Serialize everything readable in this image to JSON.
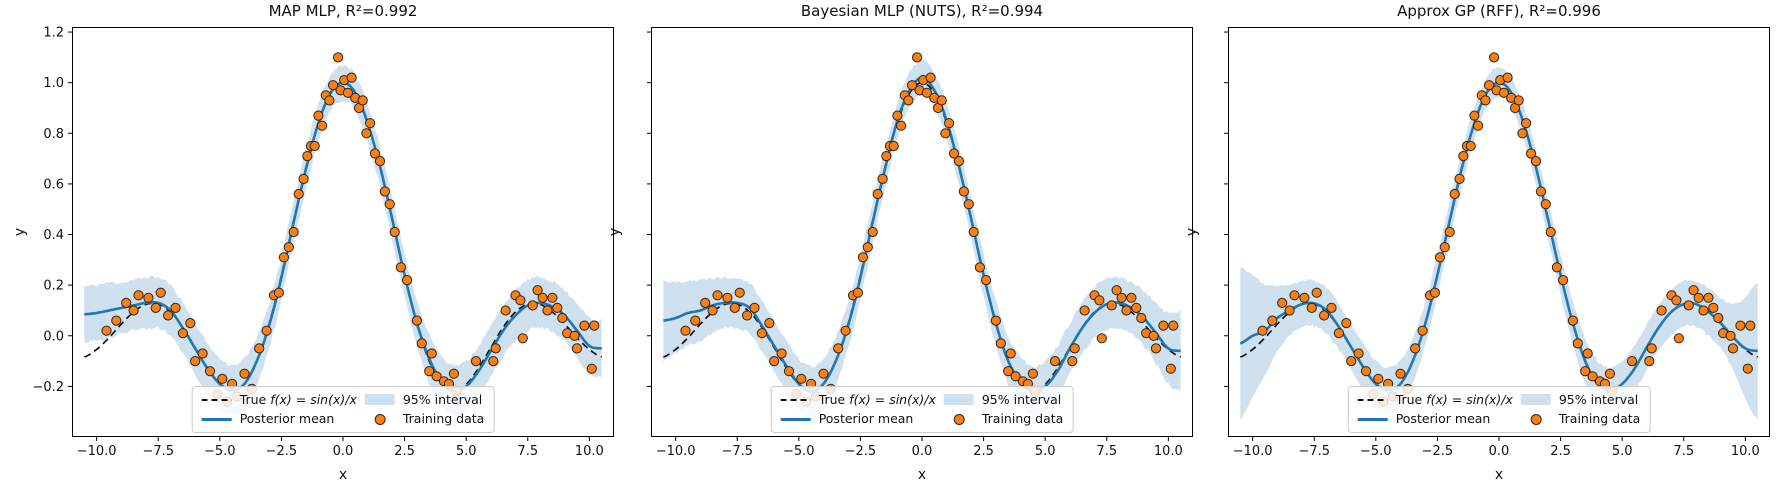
{
  "figure": {
    "background": "#ffffff"
  },
  "chart_data": {
    "type": "line",
    "xlabel": "x",
    "ylabel": "y",
    "xlim": [
      -11,
      11
    ],
    "ylim": [
      -0.4,
      1.22
    ],
    "grid": false,
    "legend_position": "lower center",
    "legend": {
      "true_label_prefix": "True ",
      "true_label_math": "f(x) = sin(x)/x",
      "mean_label": "Posterior mean",
      "interval_label": "95% interval",
      "data_label": "Training data"
    },
    "colors": {
      "band": "#cfe0ee",
      "mean": "#1f77b4",
      "true_line": "#111111",
      "points": "#ff7f0e",
      "point_edge": "#262626",
      "axis": "#000000"
    },
    "x_ticks": [
      {
        "v": -10,
        "label": "−10.0"
      },
      {
        "v": -7.5,
        "label": "−7.5"
      },
      {
        "v": -5,
        "label": "−5.0"
      },
      {
        "v": -2.5,
        "label": "−2.5"
      },
      {
        "v": 0,
        "label": "0.0"
      },
      {
        "v": 2.5,
        "label": "2.5"
      },
      {
        "v": 5,
        "label": "5.0"
      },
      {
        "v": 7.5,
        "label": "7.5"
      },
      {
        "v": 10,
        "label": "10.0"
      }
    ],
    "y_ticks": [
      {
        "v": -0.2,
        "label": "−0.2"
      },
      {
        "v": 0.0,
        "label": "0.0"
      },
      {
        "v": 0.2,
        "label": "0.2"
      },
      {
        "v": 0.4,
        "label": "0.4"
      },
      {
        "v": 0.6,
        "label": "0.6"
      },
      {
        "v": 0.8,
        "label": "0.8"
      },
      {
        "v": 1.0,
        "label": "1.0"
      },
      {
        "v": 1.2,
        "label": "1.2"
      }
    ],
    "x_grid": [
      -10.5,
      -10,
      -9.5,
      -9,
      -8.5,
      -8,
      -7.5,
      -7,
      -6.5,
      -6,
      -5.5,
      -5,
      -4.5,
      -4,
      -3.5,
      -3,
      -2.5,
      -2,
      -1.5,
      -1,
      -0.5,
      0,
      0.5,
      1,
      1.5,
      2,
      2.5,
      3,
      3.5,
      4,
      4.5,
      5,
      5.5,
      6,
      6.5,
      7,
      7.5,
      8,
      8.5,
      9,
      9.5,
      10,
      10.5
    ],
    "true_y": [
      -0.084,
      -0.054,
      -0.008,
      0.046,
      0.094,
      0.124,
      0.125,
      0.094,
      0.033,
      -0.047,
      -0.128,
      -0.192,
      -0.217,
      -0.189,
      -0.1,
      0.047,
      0.239,
      0.455,
      0.665,
      0.841,
      0.959,
      1.0,
      0.959,
      0.841,
      0.665,
      0.455,
      0.239,
      0.047,
      -0.1,
      -0.189,
      -0.217,
      -0.192,
      -0.128,
      -0.047,
      0.033,
      0.094,
      0.125,
      0.124,
      0.094,
      0.046,
      -0.008,
      -0.054,
      -0.084
    ],
    "train": [
      [
        -9.6,
        0.02
      ],
      [
        -9.2,
        0.06
      ],
      [
        -8.8,
        0.13
      ],
      [
        -8.5,
        0.1
      ],
      [
        -8.3,
        0.16
      ],
      [
        -7.9,
        0.15
      ],
      [
        -7.6,
        0.11
      ],
      [
        -7.4,
        0.17
      ],
      [
        -7.1,
        0.08
      ],
      [
        -6.8,
        0.11
      ],
      [
        -6.5,
        0.01
      ],
      [
        -6.2,
        0.05
      ],
      [
        -6.0,
        -0.1
      ],
      [
        -5.7,
        -0.07
      ],
      [
        -5.4,
        -0.14
      ],
      [
        -5.1,
        -0.23
      ],
      [
        -4.9,
        -0.17
      ],
      [
        -4.7,
        -0.26
      ],
      [
        -4.5,
        -0.19
      ],
      [
        -4.3,
        -0.24
      ],
      [
        -4.0,
        -0.15
      ],
      [
        -3.7,
        -0.21
      ],
      [
        -3.4,
        -0.05
      ],
      [
        -3.1,
        0.02
      ],
      [
        -2.8,
        0.16
      ],
      [
        -2.6,
        0.17
      ],
      [
        -2.4,
        0.31
      ],
      [
        -2.2,
        0.35
      ],
      [
        -2.0,
        0.41
      ],
      [
        -1.8,
        0.56
      ],
      [
        -1.6,
        0.62
      ],
      [
        -1.45,
        0.71
      ],
      [
        -1.3,
        0.75
      ],
      [
        -1.15,
        0.75
      ],
      [
        -1.0,
        0.87
      ],
      [
        -0.85,
        0.83
      ],
      [
        -0.7,
        0.95
      ],
      [
        -0.55,
        0.93
      ],
      [
        -0.4,
        0.99
      ],
      [
        -0.2,
        1.1
      ],
      [
        -0.1,
        0.97
      ],
      [
        0.05,
        1.01
      ],
      [
        0.2,
        0.96
      ],
      [
        0.35,
        1.02
      ],
      [
        0.5,
        0.94
      ],
      [
        0.65,
        0.9
      ],
      [
        0.8,
        0.93
      ],
      [
        0.95,
        0.8
      ],
      [
        1.1,
        0.84
      ],
      [
        1.3,
        0.72
      ],
      [
        1.5,
        0.69
      ],
      [
        1.7,
        0.57
      ],
      [
        1.9,
        0.52
      ],
      [
        2.1,
        0.41
      ],
      [
        2.35,
        0.27
      ],
      [
        2.6,
        0.22
      ],
      [
        3.0,
        0.06
      ],
      [
        3.2,
        -0.03
      ],
      [
        3.5,
        -0.14
      ],
      [
        3.6,
        -0.07
      ],
      [
        3.8,
        -0.16
      ],
      [
        4.1,
        -0.18
      ],
      [
        4.3,
        -0.19
      ],
      [
        4.5,
        -0.15
      ],
      [
        4.6,
        -0.22
      ],
      [
        5.4,
        -0.1
      ],
      [
        6.1,
        -0.1
      ],
      [
        6.2,
        -0.05
      ],
      [
        6.6,
        0.1
      ],
      [
        7.0,
        0.16
      ],
      [
        7.2,
        0.14
      ],
      [
        7.3,
        -0.01
      ],
      [
        7.7,
        0.12
      ],
      [
        7.9,
        0.18
      ],
      [
        8.1,
        0.15
      ],
      [
        8.3,
        0.1
      ],
      [
        8.5,
        0.15
      ],
      [
        8.7,
        0.11
      ],
      [
        8.9,
        0.07
      ],
      [
        9.1,
        0.01
      ],
      [
        9.4,
        0.0
      ],
      [
        9.5,
        -0.05
      ],
      [
        9.8,
        0.04
      ],
      [
        10.1,
        -0.13
      ],
      [
        10.2,
        0.04
      ]
    ],
    "panels": [
      {
        "title": "MAP MLP, R²=0.992",
        "seed": 11,
        "jitter": 0.007,
        "show_y_tick_labels": true,
        "mean": [
          0.085,
          0.09,
          0.1,
          0.11,
          0.12,
          0.13,
          0.13,
          0.1,
          0.03,
          -0.05,
          -0.13,
          -0.19,
          -0.215,
          -0.19,
          -0.1,
          0.04,
          0.23,
          0.45,
          0.66,
          0.84,
          0.96,
          1.0,
          0.96,
          0.84,
          0.67,
          0.46,
          0.24,
          0.05,
          -0.09,
          -0.18,
          -0.215,
          -0.2,
          -0.14,
          -0.06,
          0.02,
          0.08,
          0.12,
          0.13,
          0.115,
          0.08,
          0.02,
          -0.04,
          -0.05
        ],
        "half": [
          0.11,
          0.11,
          0.11,
          0.1,
          0.1,
          0.1,
          0.1,
          0.1,
          0.1,
          0.1,
          0.1,
          0.1,
          0.1,
          0.1,
          0.095,
          0.09,
          0.085,
          0.08,
          0.08,
          0.075,
          0.07,
          0.07,
          0.07,
          0.075,
          0.08,
          0.08,
          0.085,
          0.09,
          0.095,
          0.1,
          0.1,
          0.1,
          0.1,
          0.1,
          0.1,
          0.1,
          0.1,
          0.1,
          0.1,
          0.1,
          0.11,
          0.11,
          0.11
        ]
      },
      {
        "title": "Bayesian MLP (NUTS), R²=0.994",
        "seed": 22,
        "jitter": 0.007,
        "show_y_tick_labels": false,
        "mean": [
          0.06,
          0.07,
          0.09,
          0.1,
          0.12,
          0.13,
          0.13,
          0.11,
          0.04,
          -0.04,
          -0.12,
          -0.19,
          -0.22,
          -0.19,
          -0.1,
          0.04,
          0.23,
          0.45,
          0.66,
          0.85,
          0.97,
          1.02,
          0.97,
          0.85,
          0.67,
          0.46,
          0.24,
          0.05,
          -0.1,
          -0.18,
          -0.22,
          -0.2,
          -0.14,
          -0.05,
          0.03,
          0.09,
          0.125,
          0.13,
          0.11,
          0.07,
          0.01,
          -0.05,
          -0.06
        ],
        "half": [
          0.16,
          0.14,
          0.13,
          0.12,
          0.11,
          0.1,
          0.1,
          0.1,
          0.1,
          0.1,
          0.1,
          0.1,
          0.1,
          0.1,
          0.095,
          0.09,
          0.085,
          0.08,
          0.075,
          0.07,
          0.07,
          0.07,
          0.07,
          0.07,
          0.075,
          0.08,
          0.085,
          0.09,
          0.095,
          0.1,
          0.1,
          0.1,
          0.1,
          0.1,
          0.1,
          0.1,
          0.1,
          0.1,
          0.1,
          0.11,
          0.12,
          0.14,
          0.16
        ]
      },
      {
        "title": "Approx GP (RFF), R²=0.996",
        "seed": 33,
        "jitter": 0.005,
        "show_y_tick_labels": false,
        "mean": [
          -0.03,
          0.0,
          0.02,
          0.07,
          0.1,
          0.125,
          0.128,
          0.1,
          0.035,
          -0.045,
          -0.125,
          -0.19,
          -0.215,
          -0.19,
          -0.1,
          0.045,
          0.24,
          0.455,
          0.665,
          0.84,
          0.96,
          1.0,
          0.96,
          0.84,
          0.665,
          0.455,
          0.24,
          0.05,
          -0.1,
          -0.19,
          -0.215,
          -0.19,
          -0.13,
          -0.045,
          0.035,
          0.095,
          0.125,
          0.125,
          0.095,
          0.05,
          -0.005,
          -0.05,
          -0.06
        ],
        "half": [
          0.3,
          0.24,
          0.18,
          0.13,
          0.1,
          0.09,
          0.09,
          0.09,
          0.09,
          0.09,
          0.09,
          0.09,
          0.09,
          0.09,
          0.09,
          0.085,
          0.08,
          0.075,
          0.07,
          0.065,
          0.06,
          0.06,
          0.06,
          0.065,
          0.07,
          0.075,
          0.08,
          0.085,
          0.09,
          0.09,
          0.09,
          0.09,
          0.09,
          0.09,
          0.09,
          0.09,
          0.09,
          0.09,
          0.095,
          0.1,
          0.13,
          0.2,
          0.27
        ]
      }
    ]
  }
}
